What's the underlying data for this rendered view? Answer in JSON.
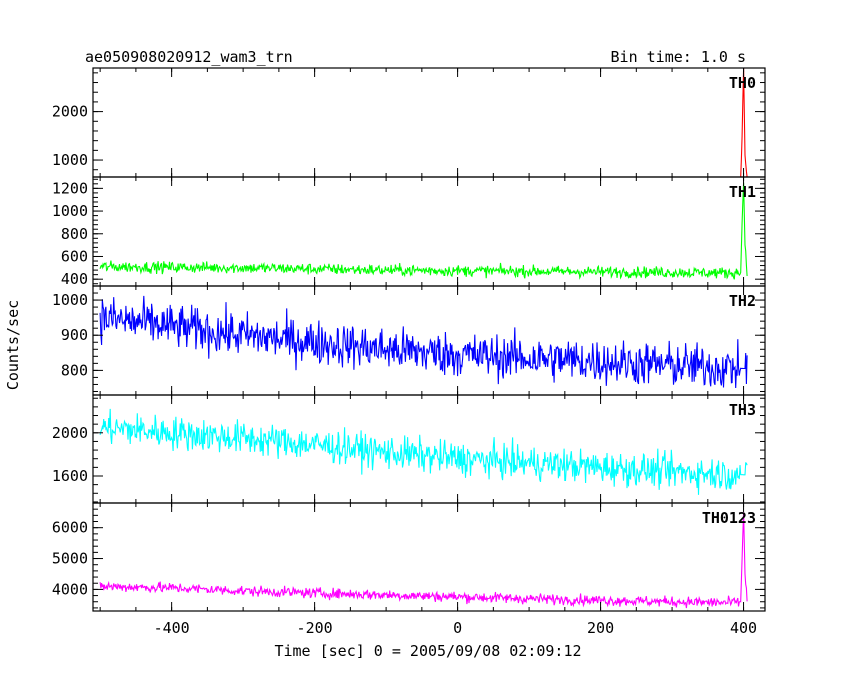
{
  "title_left": "ae050908020912_wam3_trn",
  "title_right": "Bin time: 1.0 s",
  "xlabel": "Time [sec] 0 = 2005/09/08 02:09:12",
  "ylabel": "Counts/sec",
  "chart_data": [
    {
      "type": "line",
      "name": "TH0",
      "color": "#ff0000",
      "xlim": [
        -510,
        430
      ],
      "ylim": [
        650,
        2900
      ],
      "yticks": [
        1000,
        2000
      ],
      "xticks": [
        -400,
        -200,
        0,
        200,
        400
      ],
      "x": [
        -500,
        -400,
        -300,
        -200,
        -100,
        0,
        100,
        200,
        300,
        380,
        396,
        398,
        400,
        402,
        405
      ],
      "y": [
        620,
        605,
        595,
        590,
        580,
        575,
        570,
        565,
        560,
        555,
        560,
        1500,
        2900,
        1100,
        600
      ]
    },
    {
      "type": "line",
      "name": "TH1",
      "color": "#00ff00",
      "xlim": [
        -510,
        430
      ],
      "ylim": [
        340,
        1300
      ],
      "yticks": [
        400,
        600,
        800,
        1000,
        1200
      ],
      "xticks": [
        -400,
        -200,
        0,
        200,
        400
      ],
      "x": [
        -500,
        -400,
        -300,
        -200,
        -100,
        0,
        100,
        200,
        300,
        380,
        396,
        398,
        400,
        402,
        405
      ],
      "y": [
        510,
        505,
        500,
        490,
        480,
        475,
        470,
        465,
        460,
        455,
        460,
        900,
        1250,
        700,
        460
      ]
    },
    {
      "type": "line",
      "name": "TH2",
      "color": "#0000ff",
      "xlim": [
        -510,
        430
      ],
      "ylim": [
        730,
        1040
      ],
      "yticks": [
        800,
        900,
        1000
      ],
      "xticks": [
        -400,
        -200,
        0,
        200,
        400
      ],
      "x": [
        -500,
        -400,
        -300,
        -200,
        -100,
        0,
        100,
        200,
        300,
        405
      ],
      "y": [
        950,
        925,
        900,
        880,
        860,
        845,
        835,
        825,
        815,
        805
      ]
    },
    {
      "type": "line",
      "name": "TH3",
      "color": "#00ffff",
      "xlim": [
        -510,
        430
      ],
      "ylim": [
        1350,
        2350
      ],
      "yticks": [
        1600,
        2000
      ],
      "xticks": [
        -400,
        -200,
        0,
        200,
        400
      ],
      "x": [
        -500,
        -400,
        -300,
        -200,
        -100,
        0,
        100,
        200,
        300,
        405
      ],
      "y": [
        2050,
        2000,
        1950,
        1890,
        1820,
        1760,
        1720,
        1680,
        1640,
        1610
      ]
    },
    {
      "type": "line",
      "name": "TH0123",
      "color": "#ff00ff",
      "xlim": [
        -510,
        430
      ],
      "ylim": [
        3300,
        6800
      ],
      "yticks": [
        4000,
        5000,
        6000
      ],
      "xticks": [
        -400,
        -200,
        0,
        200,
        400
      ],
      "x": [
        -500,
        -400,
        -300,
        -200,
        -100,
        0,
        100,
        200,
        300,
        380,
        396,
        398,
        400,
        402,
        405
      ],
      "y": [
        4100,
        4050,
        3950,
        3880,
        3820,
        3760,
        3700,
        3650,
        3600,
        3570,
        3600,
        5000,
        6500,
        4500,
        3600
      ]
    }
  ]
}
